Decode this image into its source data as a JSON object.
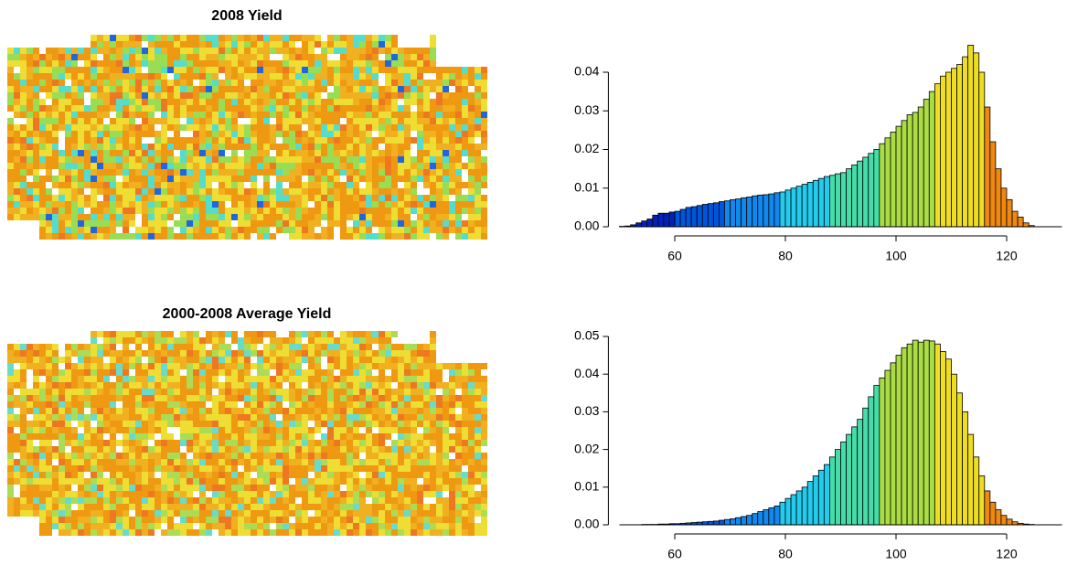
{
  "chart_data": [
    {
      "type": "histogram",
      "title": "2008 Yield",
      "bins": [
        50,
        51,
        52,
        53,
        54,
        55,
        56,
        57,
        58,
        59,
        60,
        61,
        62,
        63,
        64,
        65,
        66,
        67,
        68,
        69,
        70,
        71,
        72,
        73,
        74,
        75,
        76,
        77,
        78,
        79,
        80,
        81,
        82,
        83,
        84,
        85,
        86,
        87,
        88,
        89,
        90,
        91,
        92,
        93,
        94,
        95,
        96,
        97,
        98,
        99,
        100,
        101,
        102,
        103,
        104,
        105,
        106,
        107,
        108,
        109,
        110,
        111,
        112,
        113,
        114,
        115,
        116,
        117,
        118,
        119,
        120,
        121,
        122,
        123,
        124,
        125
      ],
      "values": [
        0.0001,
        0.0002,
        0.0005,
        0.001,
        0.0015,
        0.002,
        0.003,
        0.0035,
        0.0035,
        0.0038,
        0.004,
        0.0045,
        0.005,
        0.0052,
        0.0055,
        0.0058,
        0.006,
        0.0062,
        0.0065,
        0.0067,
        0.007,
        0.0072,
        0.0075,
        0.0077,
        0.008,
        0.0082,
        0.0083,
        0.0085,
        0.0088,
        0.009,
        0.0095,
        0.01,
        0.0105,
        0.011,
        0.0115,
        0.012,
        0.0125,
        0.013,
        0.0133,
        0.0137,
        0.014,
        0.015,
        0.016,
        0.017,
        0.018,
        0.019,
        0.02,
        0.0215,
        0.023,
        0.0245,
        0.026,
        0.0275,
        0.029,
        0.0296,
        0.031,
        0.033,
        0.035,
        0.037,
        0.039,
        0.04,
        0.041,
        0.042,
        0.044,
        0.047,
        0.045,
        0.04,
        0.031,
        0.022,
        0.015,
        0.01,
        0.007,
        0.004,
        0.0025,
        0.001,
        0.0003
      ],
      "palette": [
        "#0022bb",
        "#0055dd",
        "#1188ee",
        "#22ccee",
        "#44ddaa",
        "#aadd44",
        "#eedd22",
        "#ee8811"
      ],
      "xlim": [
        48,
        130
      ],
      "xticks": [
        60,
        80,
        100,
        120
      ],
      "ylim": [
        0,
        0.048
      ],
      "yticks": [
        {
          "value": 0,
          "label": "0.00"
        },
        {
          "value": 0.01,
          "label": "0.01"
        },
        {
          "value": 0.02,
          "label": "0.02"
        },
        {
          "value": 0.03,
          "label": "0.03"
        },
        {
          "value": 0.04,
          "label": "0.04"
        }
      ]
    },
    {
      "type": "histogram",
      "title": "2000-2008 Average Yield",
      "bins": [
        50,
        51,
        52,
        53,
        54,
        55,
        56,
        57,
        58,
        59,
        60,
        61,
        62,
        63,
        64,
        65,
        66,
        67,
        68,
        69,
        70,
        71,
        72,
        73,
        74,
        75,
        76,
        77,
        78,
        79,
        80,
        81,
        82,
        83,
        84,
        85,
        86,
        87,
        88,
        89,
        90,
        91,
        92,
        93,
        94,
        95,
        96,
        97,
        98,
        99,
        100,
        101,
        102,
        103,
        104,
        105,
        106,
        107,
        108,
        109,
        110,
        111,
        112,
        113,
        114,
        115,
        116,
        117,
        118,
        119,
        120,
        121,
        122,
        123,
        124,
        125
      ],
      "values": [
        0,
        0,
        0,
        0,
        0.0001,
        0.0001,
        0.0001,
        0.0002,
        0.0002,
        0.0003,
        0.0003,
        0.0004,
        0.0005,
        0.0006,
        0.0007,
        0.0008,
        0.0009,
        0.001,
        0.0012,
        0.0014,
        0.0016,
        0.0019,
        0.0022,
        0.0025,
        0.003,
        0.0035,
        0.004,
        0.0045,
        0.005,
        0.006,
        0.007,
        0.008,
        0.009,
        0.01,
        0.0115,
        0.013,
        0.0145,
        0.016,
        0.018,
        0.02,
        0.022,
        0.024,
        0.026,
        0.028,
        0.031,
        0.034,
        0.037,
        0.039,
        0.041,
        0.043,
        0.045,
        0.047,
        0.048,
        0.049,
        0.0485,
        0.049,
        0.0488,
        0.048,
        0.046,
        0.044,
        0.04,
        0.035,
        0.03,
        0.024,
        0.018,
        0.013,
        0.009,
        0.006,
        0.004,
        0.0025,
        0.0015,
        0.0008,
        0.0004,
        0.0002,
        0.0001
      ],
      "palette": [
        "#0022bb",
        "#0055dd",
        "#1188ee",
        "#22ccee",
        "#44ddaa",
        "#aadd44",
        "#eedd22",
        "#ee8811"
      ],
      "xlim": [
        48,
        130
      ],
      "xticks": [
        60,
        80,
        100,
        120
      ],
      "ylim": [
        0,
        0.05
      ],
      "yticks": [
        {
          "value": 0,
          "label": "0.00"
        },
        {
          "value": 0.01,
          "label": "0.01"
        },
        {
          "value": 0.02,
          "label": "0.02"
        },
        {
          "value": 0.03,
          "label": "0.03"
        },
        {
          "value": 0.04,
          "label": "0.04"
        },
        {
          "value": 0.05,
          "label": "0.05"
        }
      ]
    }
  ]
}
